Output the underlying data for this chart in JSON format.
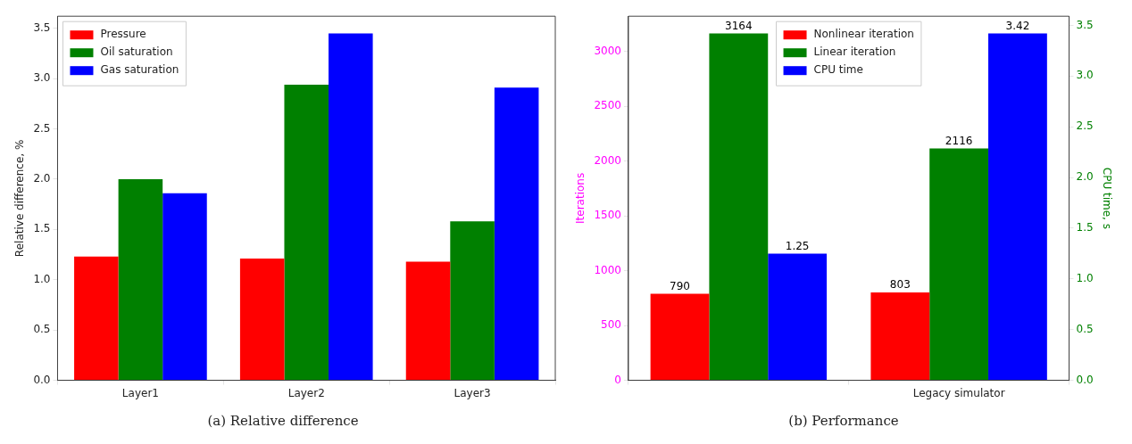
{
  "chart_data": [
    {
      "type": "bar",
      "title": "(a) Relative difference",
      "ylabel": "Relative difference, %",
      "categories": [
        "Layer1",
        "Layer2",
        "Layer3"
      ],
      "ylim": [
        0,
        3.62
      ],
      "yticks": [
        {
          "value": 0,
          "label": "0.0"
        },
        0.5,
        {
          "value": 1,
          "label": "1.0"
        },
        1.5,
        {
          "value": 2,
          "label": "2.0"
        },
        2.5,
        {
          "value": 3,
          "label": "3.0"
        },
        3.5
      ],
      "legend": "top left",
      "grid": false,
      "series": [
        {
          "name": "Pressure",
          "color": "#ff0000",
          "values": [
            1.23,
            1.21,
            1.18
          ]
        },
        {
          "name": "Oil saturation",
          "color": "#008000",
          "values": [
            2.0,
            2.94,
            1.58
          ]
        },
        {
          "name": "Gas saturation",
          "color": "#0000ff",
          "values": [
            1.86,
            3.45,
            2.91
          ]
        }
      ]
    },
    {
      "type": "bar",
      "title": "(b) Performance",
      "ylabel": "Iterations",
      "y2label": "CPU time, s",
      "categories": [
        null,
        "Legacy simulator"
      ],
      "ylim": [
        0,
        3322
      ],
      "yticks": [
        0,
        500,
        1000,
        1500,
        2000,
        2500,
        3000
      ],
      "y2lim": [
        0,
        3.59
      ],
      "y2ticks": [
        {
          "value": 0,
          "label": "0.0"
        },
        0.5,
        {
          "value": 1,
          "label": "1.0"
        },
        1.5,
        {
          "value": 2,
          "label": "2.0"
        },
        2.5,
        {
          "value": 3,
          "label": "3.0"
        },
        3.5
      ],
      "legend": "top",
      "grid": false,
      "data_labels": true,
      "series": [
        {
          "name": "Nonlinear iteration",
          "color": "#ff0000",
          "values": [
            790,
            803
          ]
        },
        {
          "name": "Linear iteration",
          "color": "#008000",
          "values": [
            3164,
            2116
          ]
        },
        {
          "name": "CPU time",
          "color": "#0000ff",
          "values": [
            1.25,
            3.42
          ],
          "axis": "y2"
        }
      ]
    }
  ]
}
